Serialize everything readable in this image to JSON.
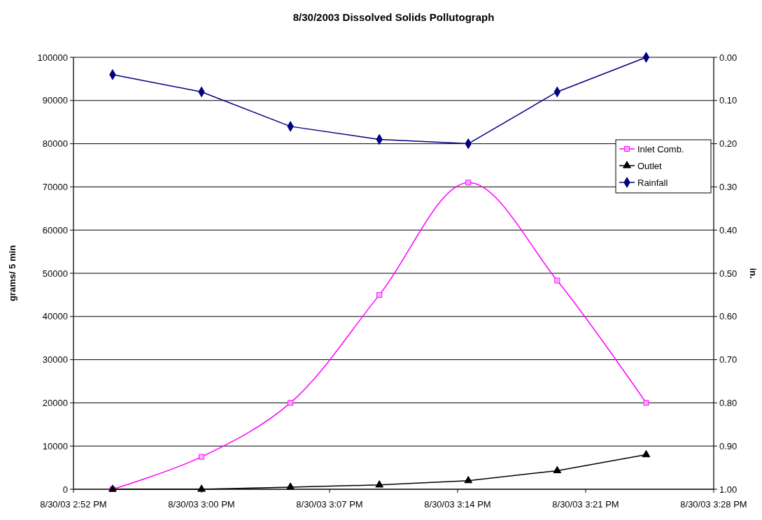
{
  "chart_data": {
    "type": "line",
    "title": "8/30/2003  Dissolved Solids Pollutograph",
    "ylabel": "grams/ 5 min",
    "y2label": "in.",
    "x": [
      "2003-08-30T14:55",
      "2003-08-30T15:00",
      "2003-08-30T15:05",
      "2003-08-30T15:10",
      "2003-08-30T15:15",
      "2003-08-30T15:20",
      "2003-08-30T15:25"
    ],
    "xlim": [
      "2003-08-30T14:52:48",
      "2003-08-30T15:28:48"
    ],
    "xticks": [
      {
        "value": "2003-08-30T14:52:48",
        "label": "8/30/03 2:52 PM"
      },
      {
        "value": "2003-08-30T15:00",
        "label": "8/30/03 3:00 PM"
      },
      {
        "value": "2003-08-30T15:07:12",
        "label": "8/30/03 3:07 PM"
      },
      {
        "value": "2003-08-30T15:14:24",
        "label": "8/30/03 3:14 PM"
      },
      {
        "value": "2003-08-30T15:21:36",
        "label": "8/30/03 3:21 PM"
      },
      {
        "value": "2003-08-30T15:28:48",
        "label": "8/30/03 3:28 PM"
      }
    ],
    "ylim": [
      0,
      100000
    ],
    "yticks": [
      0,
      10000,
      20000,
      30000,
      40000,
      50000,
      60000,
      70000,
      80000,
      90000,
      100000
    ],
    "y2lim": [
      1.0,
      0.0
    ],
    "y2ticks": [
      {
        "value": 0,
        "label": "0.00"
      },
      {
        "value": 0.1,
        "label": "0.10"
      },
      {
        "value": 0.2,
        "label": "0.20"
      },
      {
        "value": 0.3,
        "label": "0.30"
      },
      {
        "value": 0.4,
        "label": "0.40"
      },
      {
        "value": 0.5,
        "label": "0.50"
      },
      {
        "value": 0.6,
        "label": "0.60"
      },
      {
        "value": 0.7,
        "label": "0.70"
      },
      {
        "value": 0.8,
        "label": "0.80"
      },
      {
        "value": 0.9,
        "label": "0.90"
      },
      {
        "value": 1.0,
        "label": "1.00"
      }
    ],
    "series": [
      {
        "name": "Inlet Comb.",
        "color": "#ff00ff",
        "marker": "square",
        "values": [
          0,
          7500,
          20000,
          45000,
          71000,
          48300,
          20000
        ]
      },
      {
        "name": "Outlet",
        "color": "#000000",
        "marker": "triangle",
        "values": [
          0,
          0,
          500,
          1000,
          2000,
          4300,
          8000
        ]
      },
      {
        "name": "Rainfall",
        "color": "#000080",
        "marker": "diamond",
        "axis": "y2",
        "values": [
          0.04,
          0.08,
          0.16,
          0.19,
          0.2,
          0.08,
          0.0
        ]
      }
    ],
    "grid": "y",
    "legend": "right",
    "line_style": "solid"
  }
}
